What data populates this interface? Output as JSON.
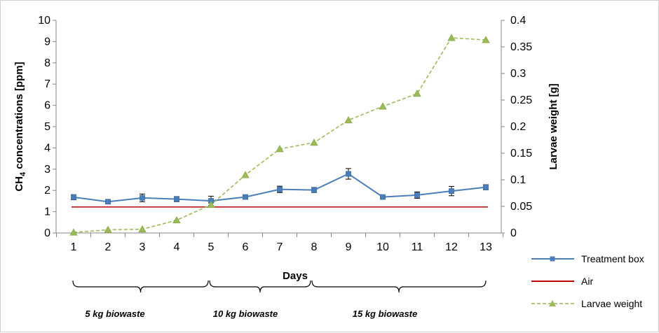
{
  "chart_data": {
    "type": "line",
    "x": [
      1,
      2,
      3,
      4,
      5,
      6,
      7,
      8,
      9,
      10,
      11,
      12,
      13
    ],
    "xlabel": "Days",
    "ylabel_parts": {
      "main": "CH",
      "sub": "4",
      "rest": " concentrations [ppm]"
    },
    "y2label": "Larvae weight [g]",
    "ylim": [
      0,
      10
    ],
    "y2lim": [
      0,
      0.4
    ],
    "yticks": [
      "0",
      "1",
      "2",
      "3",
      "4",
      "5",
      "6",
      "7",
      "8",
      "9",
      "10"
    ],
    "y2ticks": [
      "0",
      "0.05",
      "0.1",
      "0.15",
      "0.2",
      "0.25",
      "0.3",
      "0.35",
      "0.4"
    ],
    "grid": false,
    "legend_position": "right",
    "series": [
      {
        "name": "Treatment box",
        "axis": "left",
        "color": "#4a7ebb",
        "marker": "square",
        "values": [
          1.68,
          1.47,
          1.65,
          1.59,
          1.51,
          1.69,
          2.05,
          2.02,
          2.78,
          1.69,
          1.78,
          1.97,
          2.15
        ],
        "errors": [
          0.12,
          0.08,
          0.18,
          0.12,
          0.22,
          0.07,
          0.15,
          0.12,
          0.25,
          0.05,
          0.15,
          0.22,
          0.12
        ]
      },
      {
        "name": "Air",
        "axis": "left",
        "color": "#c00000",
        "marker": "none",
        "values": [
          1.22,
          1.22,
          1.22,
          1.22,
          1.22,
          1.22,
          1.22,
          1.22,
          1.22,
          1.22,
          1.22,
          1.22,
          1.22
        ]
      },
      {
        "name": "Larvae weight",
        "axis": "right",
        "color": "#9bbb59",
        "marker": "triangle",
        "dashed": true,
        "values": [
          0.001,
          0.006,
          0.007,
          0.024,
          0.053,
          0.109,
          0.158,
          0.17,
          0.212,
          0.238,
          0.262,
          0.367,
          0.363
        ]
      }
    ],
    "phases": [
      {
        "label": "5 kg biowaste",
        "from": 1,
        "to": 5
      },
      {
        "label": "10 kg biowaste",
        "from": 5,
        "to": 8
      },
      {
        "label": "15 kg biowaste",
        "from": 8,
        "to": 13
      }
    ]
  }
}
